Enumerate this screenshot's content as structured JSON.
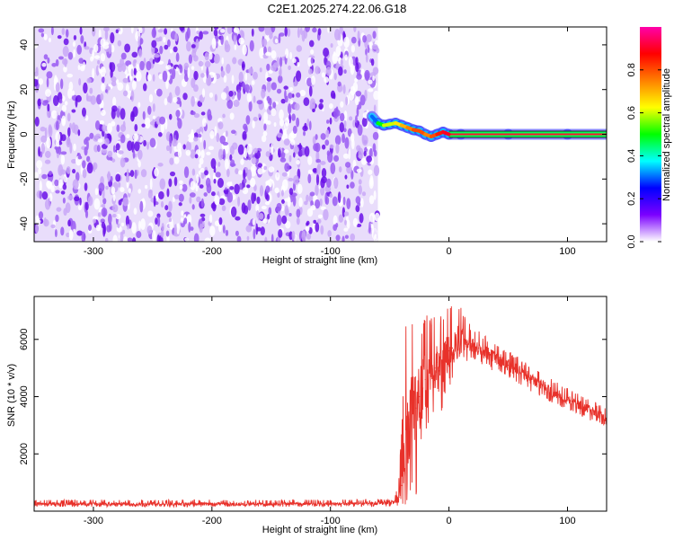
{
  "figure": {
    "title": "C2E1.2025.274.22.06.G18"
  },
  "chart_data": [
    {
      "type": "heatmap",
      "name": "spectrogram",
      "xlabel": "Height of straight line (km)",
      "ylabel": "Frequency (Hz)",
      "xlim": [
        -350,
        133
      ],
      "ylim": [
        -48,
        48
      ],
      "xticks": [
        -300,
        -200,
        -100,
        0,
        100
      ],
      "yticks": [
        -40,
        -20,
        0,
        20,
        40
      ],
      "noise_region": {
        "x_range": [
          -350,
          -60
        ],
        "y_range": [
          -48,
          48
        ],
        "amplitude_range": [
          0.05,
          0.25
        ]
      },
      "signal_track": {
        "x": [
          -65,
          -60,
          -55,
          -50,
          -45,
          -40,
          -35,
          -30,
          -25,
          -20,
          -15,
          -10,
          -5,
          0,
          10,
          50,
          100,
          133
        ],
        "y": [
          8,
          5,
          4,
          4.5,
          5,
          4,
          3,
          2,
          1.5,
          0,
          -1,
          0,
          1,
          0,
          0,
          0,
          0,
          0
        ],
        "amplitude": [
          0.3,
          0.5,
          0.6,
          0.6,
          0.65,
          0.7,
          0.75,
          0.8,
          0.8,
          0.75,
          0.8,
          0.85,
          0.9,
          0.95,
          1.0,
          1.0,
          1.0,
          1.0
        ]
      },
      "colorbar": {
        "label": "Normalized spectral amplitude",
        "range": [
          0,
          1
        ],
        "ticks": [
          "0.0",
          "0.2",
          "0.4",
          "0.6",
          "0.8"
        ],
        "tick_values": [
          0.0,
          0.2,
          0.4,
          0.6,
          0.8
        ],
        "colormap": [
          "#ffffff",
          "#7b00ff",
          "#0000ff",
          "#00ffff",
          "#00ff00",
          "#ffff00",
          "#ff8000",
          "#ff0000",
          "#ff00aa"
        ]
      }
    },
    {
      "type": "line",
      "name": "snr",
      "xlabel": "Height of straight line (km)",
      "ylabel": "SNR (10 * v/v)",
      "xlim": [
        -350,
        133
      ],
      "ylim": [
        0,
        7500
      ],
      "xticks": [
        -300,
        -200,
        -100,
        0,
        100
      ],
      "yticks": [
        2000,
        4000,
        6000
      ],
      "color": "#e8312a",
      "series": [
        {
          "x": [
            -350,
            -200,
            -100,
            -50,
            -45,
            -42,
            -40,
            -38,
            -35,
            -33,
            -30,
            -28,
            -25,
            -22,
            -20,
            -18,
            -15,
            -12,
            -10,
            -8,
            -5,
            -2,
            0,
            3,
            5,
            8,
            10,
            15,
            20,
            25,
            30,
            40,
            50,
            60,
            70,
            80,
            90,
            100,
            110,
            120,
            133
          ],
          "y": [
            250,
            250,
            250,
            280,
            350,
            500,
            900,
            1500,
            2400,
            3200,
            3800,
            3600,
            4000,
            4300,
            4600,
            4500,
            4800,
            5000,
            5200,
            4900,
            5200,
            5400,
            5600,
            5700,
            5800,
            5900,
            6000,
            5900,
            5800,
            5700,
            5550,
            5350,
            5100,
            4850,
            4600,
            4350,
            4100,
            3900,
            3700,
            3500,
            3250
          ],
          "envelope_max": [
            400,
            400,
            400,
            420,
            600,
            1200,
            3500,
            6000,
            7200,
            6900,
            6500,
            6800,
            7000,
            6700,
            7000,
            6900,
            6800,
            7000,
            7300,
            7000,
            6900,
            7100,
            7200,
            7300,
            7400,
            7500,
            7300,
            6700,
            6400,
            6300,
            6150,
            5900,
            5650,
            5350,
            5050,
            4800,
            4550,
            4300,
            4100,
            3900,
            3600
          ],
          "envelope_min": [
            150,
            150,
            150,
            150,
            160,
            200,
            100,
            50,
            200,
            600,
            1200,
            400,
            1500,
            2200,
            2700,
            2400,
            3000,
            3300,
            3400,
            3000,
            3700,
            4000,
            4300,
            4500,
            4700,
            4800,
            5100,
            5200,
            5200,
            5150,
            5050,
            4850,
            4650,
            4400,
            4150,
            3950,
            3700,
            3550,
            3350,
            3150,
            2950
          ]
        }
      ]
    }
  ]
}
